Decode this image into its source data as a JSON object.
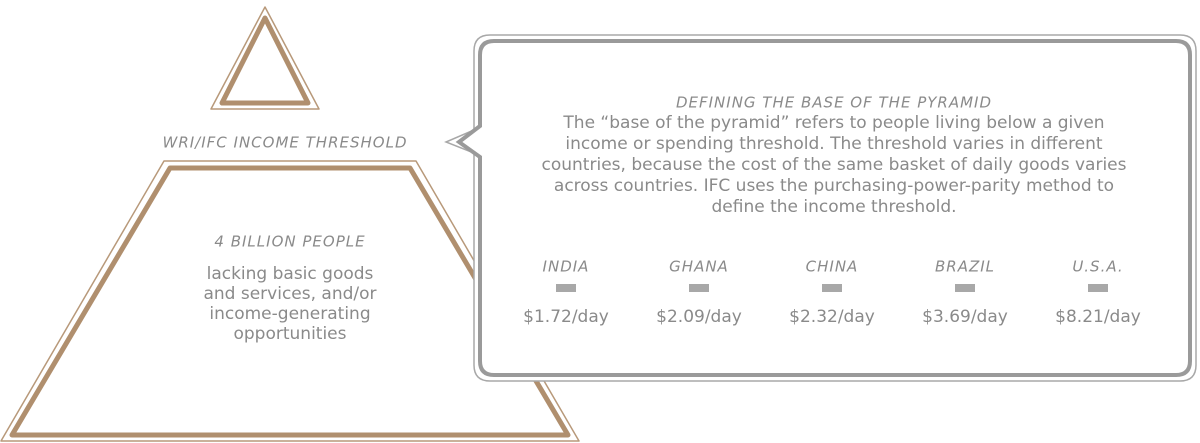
{
  "pyramid": {
    "threshold_label": "WRI/IFC INCOME THRESHOLD",
    "base_title": "4 BILLION PEOPLE",
    "base_text": [
      "lacking basic goods",
      "and services, and/or",
      "income-generating",
      "opportunities"
    ]
  },
  "callout": {
    "title": "DEFINING THE BASE OF THE PYRAMID",
    "text": [
      "The “base of the pyramid” refers to people living below a given",
      "income or spending threshold. The threshold varies in different",
      "countries, because the cost of the same basket of daily goods varies",
      "across countries. IFC uses the purchasing-power-parity method to",
      "define the income threshold."
    ],
    "countries": [
      {
        "name": "INDIA",
        "value": "$1.72/day"
      },
      {
        "name": "GHANA",
        "value": "$2.09/day"
      },
      {
        "name": "CHINA",
        "value": "$2.32/day"
      },
      {
        "name": "BRAZIL",
        "value": "$3.69/day"
      },
      {
        "name": "U.S.A.",
        "value": "$8.21/day"
      }
    ]
  }
}
